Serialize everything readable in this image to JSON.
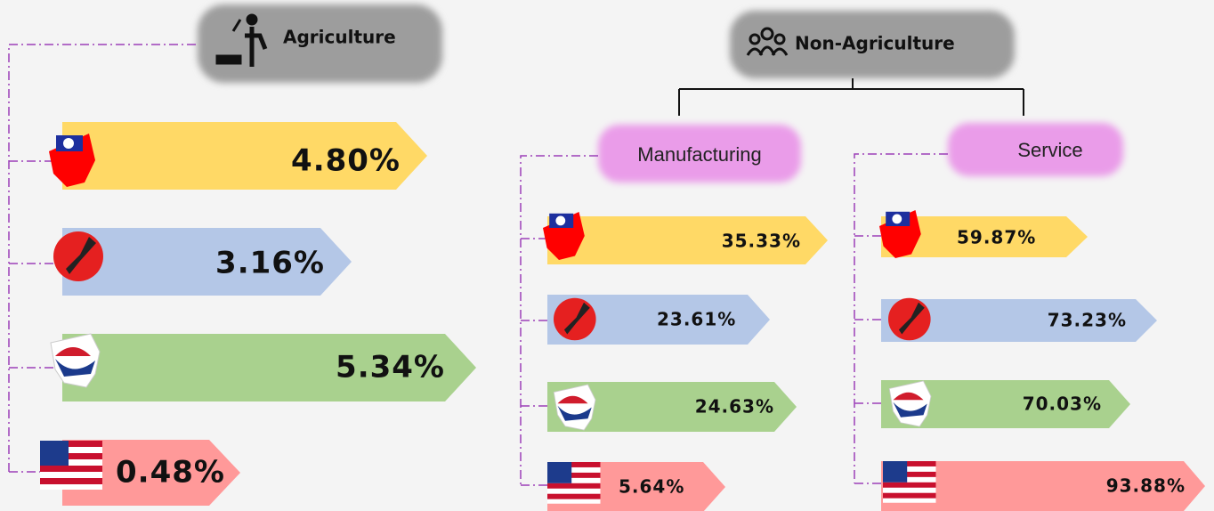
{
  "agriculture": {
    "title": "Agriculture",
    "rows": [
      "4.80%",
      "3.16%",
      "5.34%",
      "0.48%"
    ]
  },
  "non_agriculture": {
    "title": "Non-Agriculture",
    "manufacturing": {
      "title": "Manufacturing",
      "rows": [
        "35.33%",
        "23.61%",
        "24.63%",
        "5.64%"
      ]
    },
    "service": {
      "title": "Service",
      "rows": [
        "59.87%",
        "73.23%",
        "70.03%",
        "93.88%"
      ]
    }
  }
}
